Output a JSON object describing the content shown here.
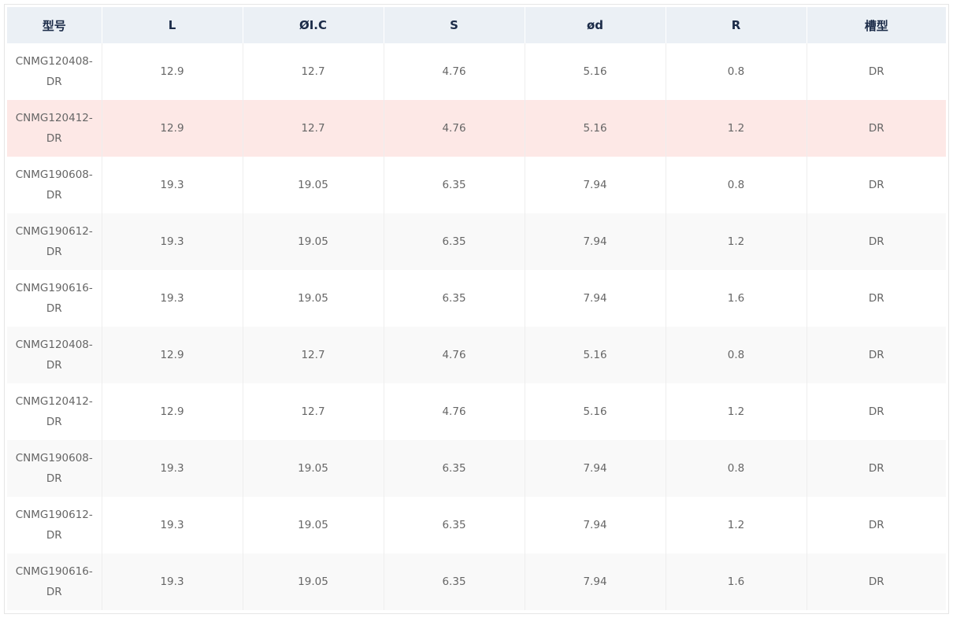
{
  "table": {
    "headers": [
      "型号",
      "L",
      "ØI.C",
      "S",
      "ød",
      "R",
      "槽型"
    ],
    "rows": [
      [
        "CNMG120408-DR",
        "12.9",
        "12.7",
        "4.76",
        "5.16",
        "0.8",
        "DR"
      ],
      [
        "CNMG120412-DR",
        "12.9",
        "12.7",
        "4.76",
        "5.16",
        "1.2",
        "DR"
      ],
      [
        "CNMG190608-DR",
        "19.3",
        "19.05",
        "6.35",
        "7.94",
        "0.8",
        "DR"
      ],
      [
        "CNMG190612-DR",
        "19.3",
        "19.05",
        "6.35",
        "7.94",
        "1.2",
        "DR"
      ],
      [
        "CNMG190616-DR",
        "19.3",
        "19.05",
        "6.35",
        "7.94",
        "1.6",
        "DR"
      ],
      [
        "CNMG120408-DR",
        "12.9",
        "12.7",
        "4.76",
        "5.16",
        "0.8",
        "DR"
      ],
      [
        "CNMG120412-DR",
        "12.9",
        "12.7",
        "4.76",
        "5.16",
        "1.2",
        "DR"
      ],
      [
        "CNMG190608-DR",
        "19.3",
        "19.05",
        "6.35",
        "7.94",
        "0.8",
        "DR"
      ],
      [
        "CNMG190612-DR",
        "19.3",
        "19.05",
        "6.35",
        "7.94",
        "1.2",
        "DR"
      ],
      [
        "CNMG190616-DR",
        "19.3",
        "19.05",
        "6.35",
        "7.94",
        "1.6",
        "DR"
      ]
    ]
  }
}
